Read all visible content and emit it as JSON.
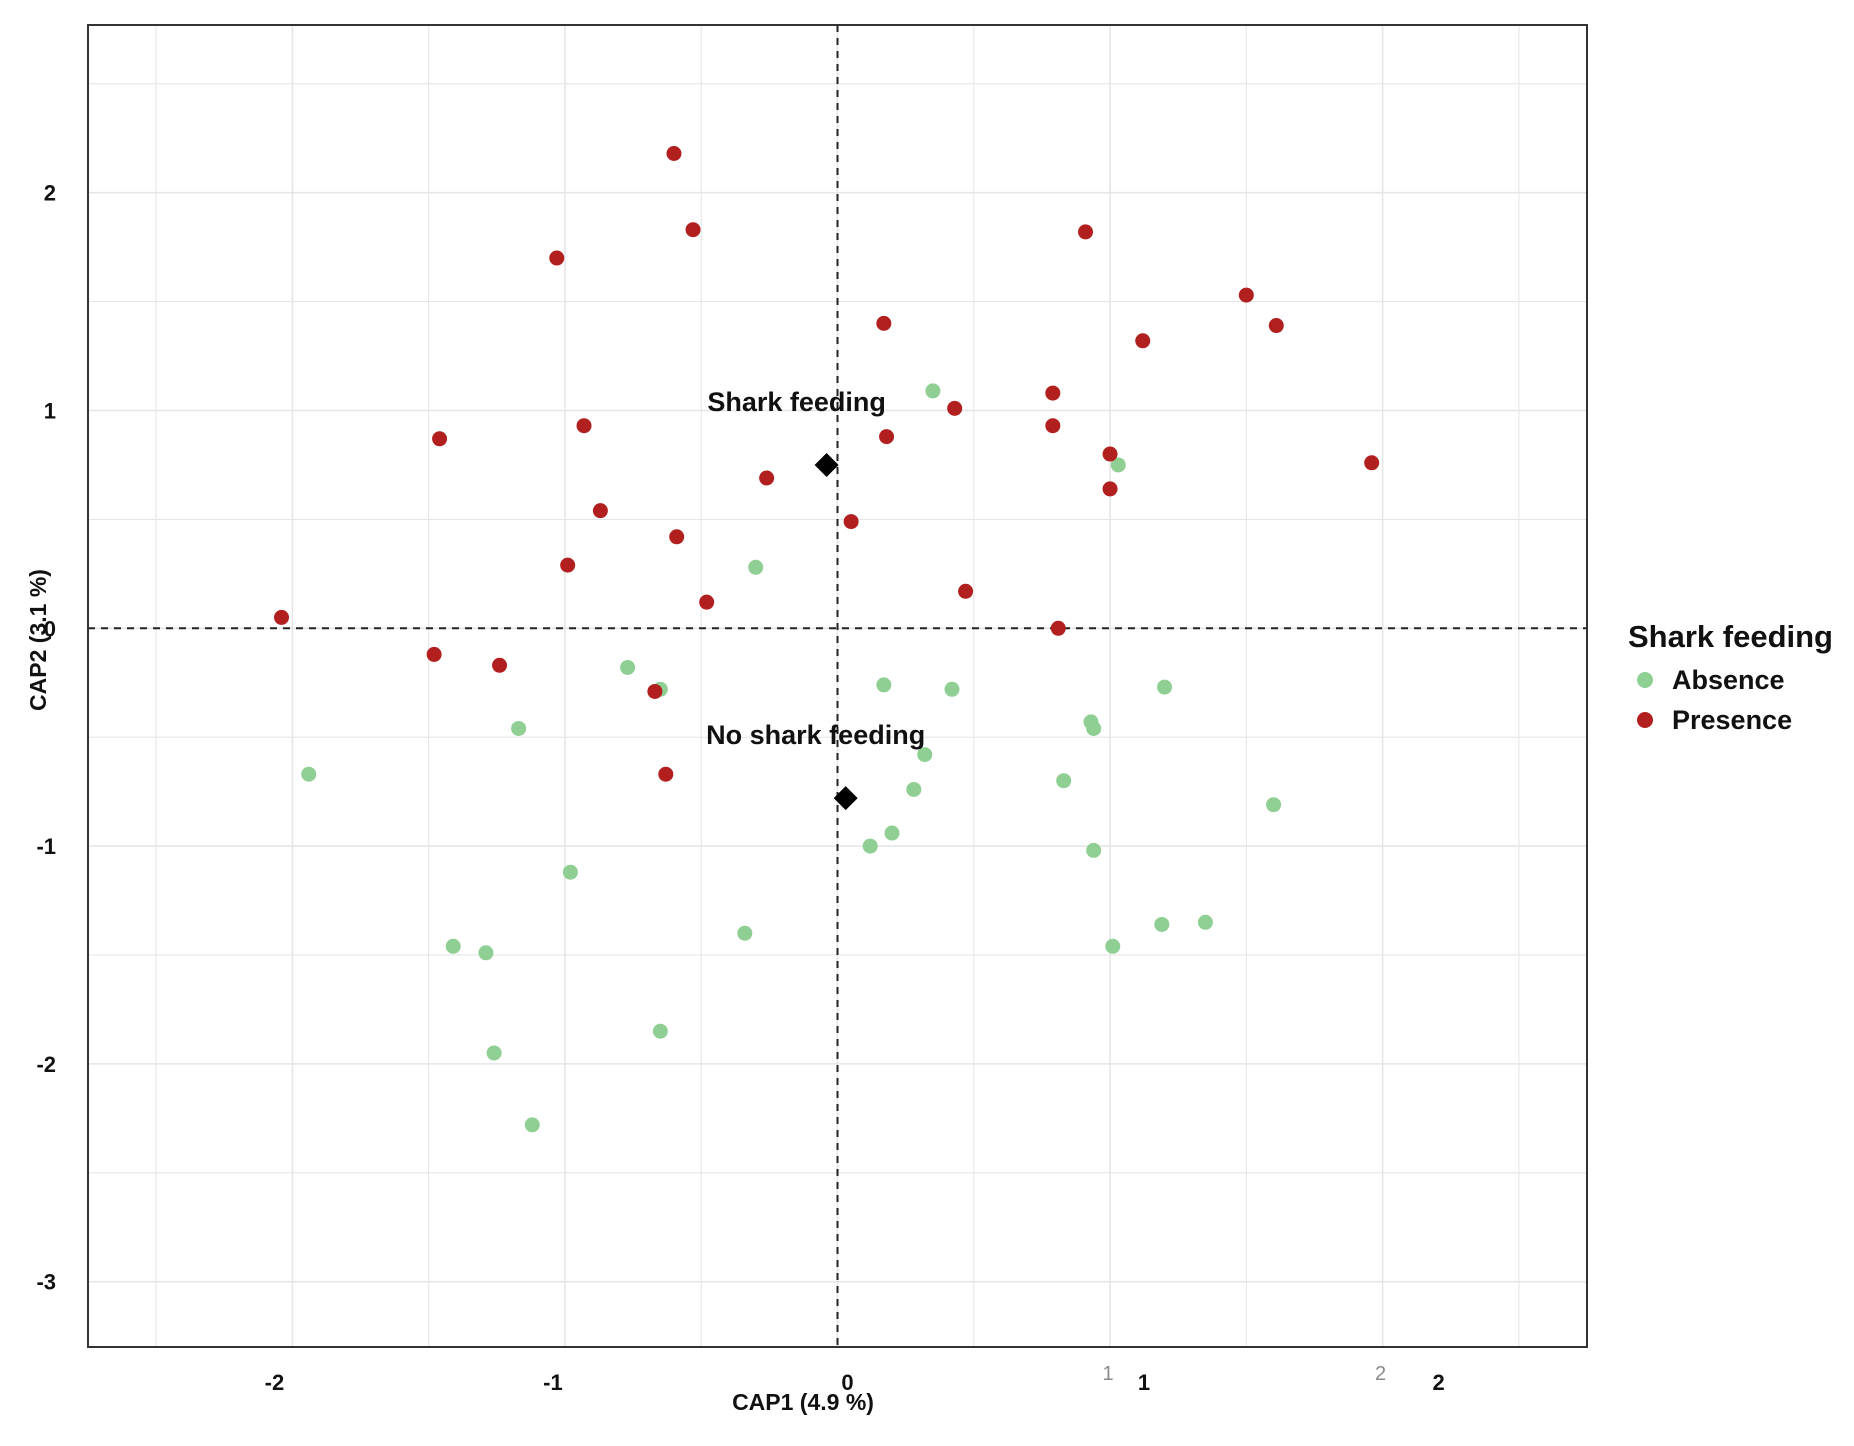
{
  "chart_data": {
    "type": "scatter",
    "xlabel": "CAP1 (4.9 %)",
    "ylabel": "CAP2 (3.1 %)",
    "xlim": [
      -2.75,
      2.75
    ],
    "ylim": [
      -3.3,
      2.77
    ],
    "x_ticks": [
      {
        "value": -2,
        "label": "-2"
      },
      {
        "value": -1,
        "label": "-1"
      },
      {
        "value": 0,
        "label": "0"
      },
      {
        "value": 1,
        "label": "1"
      },
      {
        "value": 2,
        "label": "2"
      }
    ],
    "y_ticks": [
      {
        "value": 2,
        "label": "2"
      },
      {
        "value": 1,
        "label": "1"
      },
      {
        "value": 0,
        "label": "0"
      },
      {
        "value": -1,
        "label": "-1"
      },
      {
        "value": -2,
        "label": "-2"
      },
      {
        "value": -3,
        "label": "-3"
      }
    ],
    "stray_tick_labels": [
      {
        "value": 1,
        "label": "1"
      },
      {
        "value": 2,
        "label": "2"
      }
    ],
    "grid": true,
    "reference_lines": {
      "x": 0,
      "y": 0,
      "style": "dashed"
    },
    "legend": {
      "title": "Shark feeding",
      "placement": "right",
      "entries": [
        {
          "name": "Absence",
          "color": "#8fcf93"
        },
        {
          "name": "Presence",
          "color": "#b21f1f"
        }
      ]
    },
    "series": [
      {
        "name": "Absence",
        "color": "#8fcf93",
        "points": [
          [
            0.35,
            1.09
          ],
          [
            1.03,
            0.75
          ],
          [
            -0.3,
            0.28
          ],
          [
            -0.77,
            -0.18
          ],
          [
            -0.65,
            -0.28
          ],
          [
            0.17,
            -0.26
          ],
          [
            0.42,
            -0.28
          ],
          [
            1.2,
            -0.27
          ],
          [
            0.93,
            -0.43
          ],
          [
            0.94,
            -0.46
          ],
          [
            -1.17,
            -0.46
          ],
          [
            -1.94,
            -0.67
          ],
          [
            0.32,
            -0.58
          ],
          [
            0.28,
            -0.74
          ],
          [
            0.83,
            -0.7
          ],
          [
            1.6,
            -0.81
          ],
          [
            0.2,
            -0.94
          ],
          [
            0.12,
            -1.0
          ],
          [
            0.94,
            -1.02
          ],
          [
            -0.98,
            -1.12
          ],
          [
            -0.34,
            -1.4
          ],
          [
            -1.41,
            -1.46
          ],
          [
            -1.29,
            -1.49
          ],
          [
            1.01,
            -1.46
          ],
          [
            1.19,
            -1.36
          ],
          [
            1.35,
            -1.35
          ],
          [
            -0.65,
            -1.85
          ],
          [
            -1.26,
            -1.95
          ],
          [
            -1.12,
            -2.28
          ]
        ]
      },
      {
        "name": "Presence",
        "color": "#b21f1f",
        "points": [
          [
            -0.6,
            2.18
          ],
          [
            -0.53,
            1.83
          ],
          [
            -1.03,
            1.7
          ],
          [
            0.91,
            1.82
          ],
          [
            1.5,
            1.53
          ],
          [
            1.61,
            1.39
          ],
          [
            0.17,
            1.4
          ],
          [
            1.12,
            1.32
          ],
          [
            0.79,
            1.08
          ],
          [
            0.43,
            1.01
          ],
          [
            -0.93,
            0.93
          ],
          [
            0.79,
            0.93
          ],
          [
            -1.46,
            0.87
          ],
          [
            0.18,
            0.88
          ],
          [
            1.0,
            0.8
          ],
          [
            1.96,
            0.76
          ],
          [
            -0.26,
            0.69
          ],
          [
            1.0,
            0.64
          ],
          [
            -0.87,
            0.54
          ],
          [
            0.05,
            0.49
          ],
          [
            -0.59,
            0.42
          ],
          [
            -0.99,
            0.29
          ],
          [
            0.47,
            0.17
          ],
          [
            -0.48,
            0.12
          ],
          [
            -2.04,
            0.05
          ],
          [
            0.81,
            0.0
          ],
          [
            -1.48,
            -0.12
          ],
          [
            -1.24,
            -0.17
          ],
          [
            -0.67,
            -0.29
          ],
          [
            -0.63,
            -0.67
          ]
        ]
      }
    ],
    "centroids": [
      {
        "label": "Shark feeding",
        "x": -0.04,
        "y": 0.75
      },
      {
        "label": "No shark feeding",
        "x": 0.03,
        "y": -0.78
      }
    ]
  }
}
